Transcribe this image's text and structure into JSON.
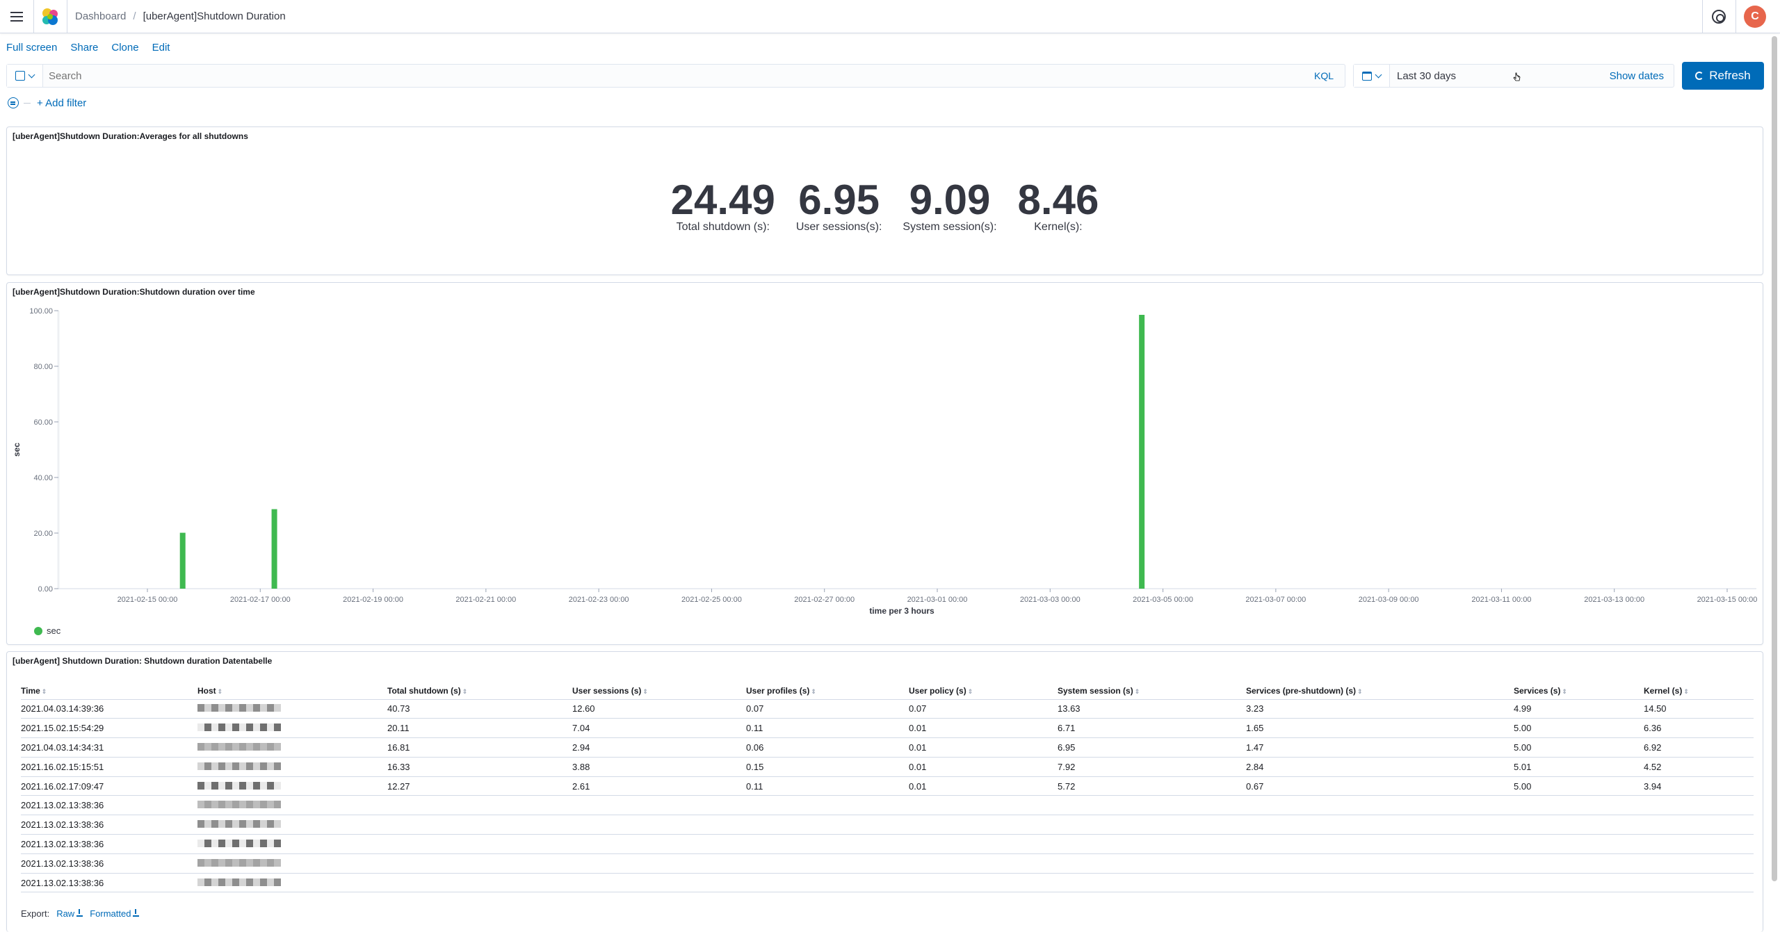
{
  "header": {
    "breadcrumb": [
      "Dashboard",
      "[uberAgent]Shutdown Duration"
    ],
    "separator": "/",
    "avatar_letter": "C",
    "accent": "#006bb8",
    "avatar_color": "#e7664c"
  },
  "topnav": [
    "Full screen",
    "Share",
    "Clone",
    "Edit"
  ],
  "querybar": {
    "placeholder": "Search",
    "language": "KQL"
  },
  "datepicker": {
    "range": "Last 30 days",
    "show_dates": "Show dates",
    "refresh": "Refresh"
  },
  "filter": {
    "add_label": "+ Add filter"
  },
  "panel1": {
    "title": "[uberAgent]Shutdown Duration:Averages for all shutdowns",
    "metrics": [
      {
        "value": "24.49",
        "label": "Total shutdown (s):"
      },
      {
        "value": "6.95",
        "label": "User sessions(s):"
      },
      {
        "value": "9.09",
        "label": "System session(s):"
      },
      {
        "value": "8.46",
        "label": "Kernel(s):"
      }
    ]
  },
  "panel2": {
    "title": "[uberAgent]Shutdown Duration:Shutdown duration over time"
  },
  "chart_data": {
    "type": "bar",
    "title": "",
    "xlabel": "time per 3 hours",
    "ylabel": "sec",
    "ylim": [
      0,
      100
    ],
    "yticks": [
      "0.00",
      "20.00",
      "40.00",
      "60.00",
      "80.00",
      "100.00"
    ],
    "xticks": [
      "2021-02-15 00:00",
      "2021-02-17 00:00",
      "2021-02-19 00:00",
      "2021-02-21 00:00",
      "2021-02-23 00:00",
      "2021-02-25 00:00",
      "2021-02-27 00:00",
      "2021-03-01 00:00",
      "2021-03-03 00:00",
      "2021-03-05 00:00",
      "2021-03-07 00:00",
      "2021-03-09 00:00",
      "2021-03-11 00:00",
      "2021-03-13 00:00",
      "2021-03-15 00:00"
    ],
    "series": [
      {
        "name": "sec",
        "color": "#54b399",
        "points": [
          {
            "x": "2021-02-15 15:00",
            "y": 20.11
          },
          {
            "x": "2021-02-17 06:00",
            "y": 28.6
          },
          {
            "x": "2021-03-04 15:00",
            "y": 98.5
          }
        ]
      }
    ],
    "legend": "bottom-left",
    "grid": false
  },
  "panel3": {
    "title": "[uberAgent] Shutdown Duration: Shutdown duration Datentabelle",
    "columns": [
      "Time",
      "Host",
      "Total shutdown (s)",
      "User sessions (s)",
      "User profiles (s)",
      "User policy (s)",
      "System session (s)",
      "Services (pre-shutdown) (s)",
      "Services (s)",
      "Kernel (s)"
    ],
    "rows": [
      [
        "2021.04.03.14:39:36",
        "",
        "40.73",
        "12.60",
        "0.07",
        "0.07",
        "13.63",
        "3.23",
        "4.99",
        "14.50"
      ],
      [
        "2021.15.02.15:54:29",
        "",
        "20.11",
        "7.04",
        "0.11",
        "0.01",
        "6.71",
        "1.65",
        "5.00",
        "6.36"
      ],
      [
        "2021.04.03.14:34:31",
        "",
        "16.81",
        "2.94",
        "0.06",
        "0.01",
        "6.95",
        "1.47",
        "5.00",
        "6.92"
      ],
      [
        "2021.16.02.15:15:51",
        "",
        "16.33",
        "3.88",
        "0.15",
        "0.01",
        "7.92",
        "2.84",
        "5.01",
        "4.52"
      ],
      [
        "2021.16.02.17:09:47",
        "",
        "12.27",
        "2.61",
        "0.11",
        "0.01",
        "5.72",
        "0.67",
        "5.00",
        "3.94"
      ],
      [
        "2021.13.02.13:38:36",
        "",
        "",
        "",
        "",
        "",
        "",
        "",
        "",
        ""
      ],
      [
        "2021.13.02.13:38:36",
        "",
        "",
        "",
        "",
        "",
        "",
        "",
        "",
        ""
      ],
      [
        "2021.13.02.13:38:36",
        "",
        "",
        "",
        "",
        "",
        "",
        "",
        "",
        ""
      ],
      [
        "2021.13.02.13:38:36",
        "",
        "",
        "",
        "",
        "",
        "",
        "",
        "",
        ""
      ],
      [
        "2021.13.02.13:38:36",
        "",
        "",
        "",
        "",
        "",
        "",
        "",
        "",
        ""
      ]
    ],
    "export_label": "Export:",
    "export_raw": "Raw",
    "export_formatted": "Formatted"
  }
}
